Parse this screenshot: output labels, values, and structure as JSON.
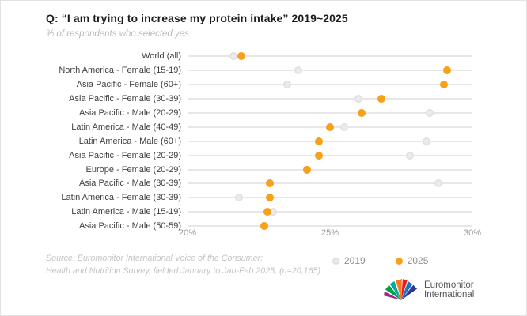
{
  "header": {
    "title": "Q: “I am trying to increase my protein intake” 2019~2025",
    "subtitle": "% of respondents who selected yes"
  },
  "chart_data": {
    "type": "scatter",
    "variant": "dumbbell-dot-plot",
    "title": "Q: “I am trying to increase my protein intake” 2019~2025",
    "xlabel": "% of respondents who selected yes",
    "xlim": [
      20,
      30
    ],
    "xticks": [
      20,
      25,
      30
    ],
    "xtick_labels": [
      "20%",
      "25%",
      "30%"
    ],
    "grid": "per-row horizontal gray lines",
    "legend_position": "bottom-center",
    "categories": [
      "World (all)",
      "North America - Female (15-19)",
      "Asia Pacific - Female (60+)",
      "Asia Pacific - Female (30-39)",
      "Asia Pacific - Male (20-29)",
      "Latin America - Male (40-49)",
      "Latin America - Male (60+)",
      "Asia Pacific - Female (20-29)",
      "Europe - Female (20-29)",
      "Asia Pacific - Male (30-39)",
      "Latin America - Female (30-39)",
      "Latin America - Male (15-19)",
      "Asia Pacific - Male (50-59)"
    ],
    "series": [
      {
        "name": "2019",
        "color": "#EBEBEB",
        "values": [
          21.6,
          23.9,
          23.5,
          26.0,
          28.5,
          25.5,
          28.4,
          27.8,
          24.2,
          28.8,
          21.8,
          23.0,
          22.7
        ]
      },
      {
        "name": "2025",
        "color": "#F7A11A",
        "values": [
          21.9,
          29.1,
          29.0,
          26.8,
          26.1,
          25.0,
          24.6,
          24.6,
          24.2,
          22.9,
          22.9,
          22.8,
          22.7
        ]
      }
    ],
    "notes": "2019 dots coincide with (are hidden behind) 2025 dots for Europe - Female (20-29) and Asia Pacific - Male (50-59)"
  },
  "legend": {
    "items": [
      {
        "label": "2019",
        "color": "#EBEBEB"
      },
      {
        "label": "2025",
        "color": "#F7A11A"
      }
    ]
  },
  "source": {
    "line1": "Source: Euromonitor International Voice of the Consumer:",
    "line2": "Health and Nutrition Survey, fielded January to Jan-Feb 2025, (n=20,165)"
  },
  "logo": {
    "line1": "Euromonitor",
    "line2": "International"
  },
  "colors": {
    "accent_orange": "#F7A11A",
    "dot_gray": "#EBEBEB",
    "row_line": "#E7E7E7"
  }
}
